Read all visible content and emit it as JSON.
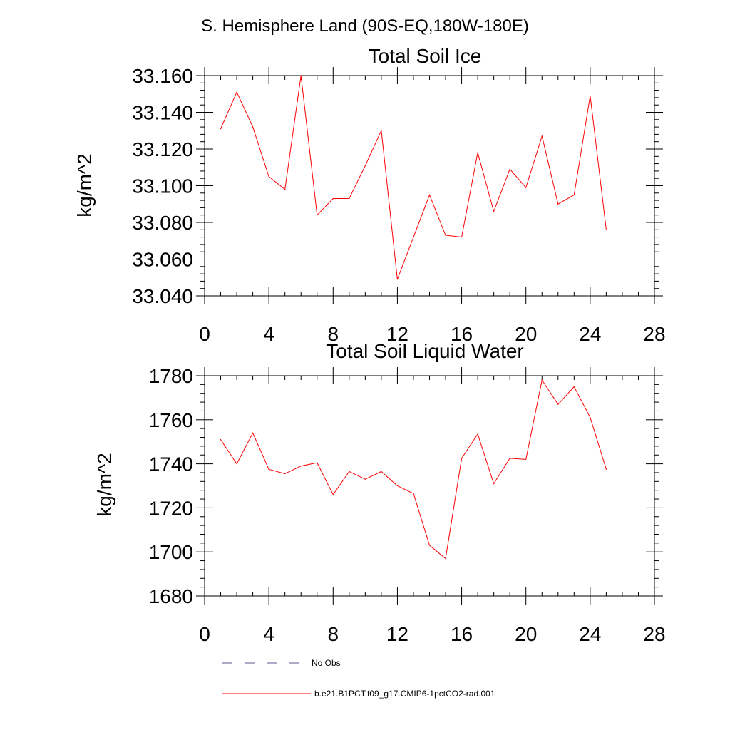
{
  "figure_title": "S. Hemisphere Land (90S-EQ,180W-180E)",
  "colors": {
    "model": "#ff0000",
    "obs": "#5a5a8c",
    "axes": "#000000"
  },
  "legend": {
    "placement": "bottom-left",
    "items": [
      {
        "label": "No Obs",
        "style": "dashed",
        "color": "#5a5a8c"
      },
      {
        "label": "b.e21.B1PCT.f09_g17.CMIP6-1pctCO2-rad.001",
        "style": "solid",
        "color": "#ff0000"
      }
    ]
  },
  "chart_data": [
    {
      "type": "line",
      "title": "Total Soil Ice",
      "ylabel": "kg/m^2",
      "xlabel": "",
      "xlim": [
        0,
        28
      ],
      "ylim": [
        33.04,
        33.16
      ],
      "xticks": [
        "0",
        "4",
        "8",
        "12",
        "16",
        "20",
        "24",
        "28"
      ],
      "yticks": [
        "33.040",
        "33.060",
        "33.080",
        "33.100",
        "33.120",
        "33.140",
        "33.160"
      ],
      "grid": false,
      "series": [
        {
          "color": "#ff0000",
          "x": [
            1,
            2,
            3,
            4,
            5,
            6,
            7,
            8,
            9,
            10,
            11,
            12,
            13,
            14,
            15,
            16,
            17,
            18,
            19,
            20,
            21,
            22,
            23,
            24,
            25
          ],
          "y": [
            33.131,
            33.151,
            33.132,
            33.105,
            33.098,
            33.16,
            33.084,
            33.093,
            33.093,
            33.111,
            33.13,
            33.049,
            33.072,
            33.095,
            33.073,
            33.072,
            33.118,
            33.086,
            33.109,
            33.099,
            33.127,
            33.09,
            33.095,
            33.149,
            33.076
          ]
        }
      ]
    },
    {
      "type": "line",
      "title": "Total Soil Liquid Water",
      "ylabel": "kg/m^2",
      "xlabel": "",
      "xlim": [
        0,
        28
      ],
      "ylim": [
        1680,
        1780
      ],
      "xticks": [
        "0",
        "4",
        "8",
        "12",
        "16",
        "20",
        "24",
        "28"
      ],
      "yticks": [
        "1680",
        "1700",
        "1720",
        "1740",
        "1760",
        "1780"
      ],
      "grid": false,
      "series": [
        {
          "color": "#ff0000",
          "x": [
            1,
            2,
            3,
            4,
            5,
            6,
            7,
            8,
            9,
            10,
            11,
            12,
            13,
            14,
            15,
            16,
            17,
            18,
            19,
            20,
            21,
            22,
            23,
            24,
            25
          ],
          "y": [
            1751,
            1740,
            1754,
            1737.5,
            1735.5,
            1739,
            1740.5,
            1726,
            1736.5,
            1733,
            1736.5,
            1730,
            1726.5,
            1703,
            1697,
            1742.5,
            1753.5,
            1731,
            1742.5,
            1742,
            1778,
            1767,
            1775,
            1761,
            1737.5
          ]
        }
      ]
    }
  ]
}
